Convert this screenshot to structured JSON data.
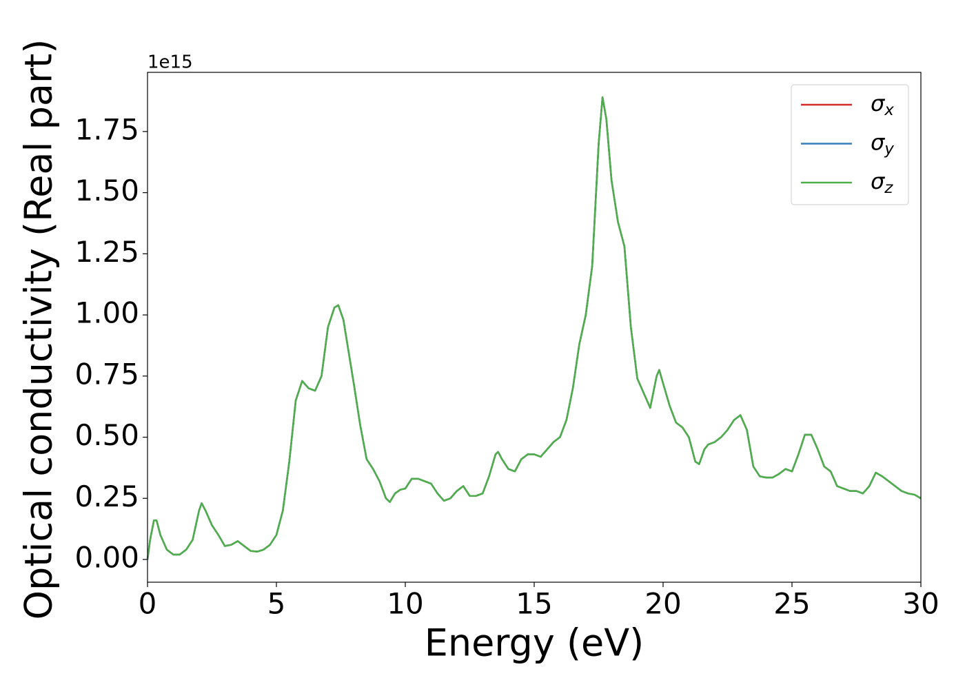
{
  "chart_data": {
    "type": "line",
    "xlabel": "Energy (eV)",
    "ylabel": "Optical conductivity (Real part)",
    "y_offset_label": "1e15",
    "x": [
      0,
      0.1,
      0.25,
      0.35,
      0.5,
      0.75,
      1.0,
      1.25,
      1.5,
      1.75,
      2.0,
      2.1,
      2.25,
      2.5,
      2.75,
      3.0,
      3.25,
      3.5,
      3.75,
      4.0,
      4.25,
      4.5,
      4.75,
      5.0,
      5.25,
      5.5,
      5.75,
      6.0,
      6.25,
      6.5,
      6.75,
      7.0,
      7.25,
      7.4,
      7.6,
      7.8,
      8.0,
      8.25,
      8.5,
      8.75,
      9.0,
      9.25,
      9.4,
      9.6,
      9.8,
      10.0,
      10.25,
      10.5,
      10.75,
      11.0,
      11.25,
      11.5,
      11.75,
      12.0,
      12.25,
      12.5,
      12.75,
      13.0,
      13.25,
      13.5,
      13.6,
      13.75,
      14.0,
      14.25,
      14.5,
      14.75,
      15.0,
      15.25,
      15.5,
      15.75,
      16.0,
      16.25,
      16.5,
      16.75,
      17.0,
      17.25,
      17.5,
      17.65,
      17.8,
      18.0,
      18.25,
      18.5,
      18.75,
      19.0,
      19.25,
      19.5,
      19.75,
      19.85,
      20.0,
      20.25,
      20.5,
      20.75,
      21.0,
      21.25,
      21.4,
      21.6,
      21.75,
      22.0,
      22.25,
      22.5,
      22.75,
      23.0,
      23.25,
      23.5,
      23.75,
      24.0,
      24.25,
      24.5,
      24.75,
      25.0,
      25.25,
      25.5,
      25.75,
      26.0,
      26.25,
      26.5,
      26.75,
      27.0,
      27.25,
      27.5,
      27.75,
      28.0,
      28.25,
      28.5,
      28.75,
      29.0,
      29.25,
      29.5,
      29.75,
      30.0
    ],
    "series": [
      {
        "name": "σx",
        "color": "#d62728",
        "values": [
          0,
          0.08,
          0.16,
          0.16,
          0.1,
          0.04,
          0.02,
          0.02,
          0.04,
          0.08,
          0.2,
          0.23,
          0.2,
          0.14,
          0.1,
          0.055,
          0.06,
          0.075,
          0.055,
          0.035,
          0.032,
          0.04,
          0.06,
          0.1,
          0.2,
          0.4,
          0.65,
          0.73,
          0.7,
          0.69,
          0.75,
          0.95,
          1.03,
          1.04,
          0.98,
          0.85,
          0.72,
          0.55,
          0.41,
          0.37,
          0.32,
          0.25,
          0.235,
          0.27,
          0.285,
          0.29,
          0.33,
          0.33,
          0.32,
          0.31,
          0.27,
          0.24,
          0.25,
          0.28,
          0.3,
          0.26,
          0.26,
          0.27,
          0.34,
          0.43,
          0.44,
          0.41,
          0.37,
          0.36,
          0.41,
          0.43,
          0.43,
          0.42,
          0.45,
          0.48,
          0.5,
          0.57,
          0.7,
          0.88,
          1.0,
          1.2,
          1.7,
          1.89,
          1.8,
          1.55,
          1.38,
          1.28,
          0.95,
          0.74,
          0.68,
          0.62,
          0.75,
          0.775,
          0.72,
          0.63,
          0.56,
          0.54,
          0.5,
          0.4,
          0.39,
          0.45,
          0.47,
          0.48,
          0.5,
          0.53,
          0.57,
          0.59,
          0.53,
          0.38,
          0.34,
          0.335,
          0.335,
          0.35,
          0.37,
          0.36,
          0.43,
          0.51,
          0.51,
          0.45,
          0.38,
          0.36,
          0.3,
          0.29,
          0.28,
          0.28,
          0.27,
          0.3,
          0.355,
          0.34,
          0.32,
          0.3,
          0.28,
          0.27,
          0.265,
          0.25
        ]
      },
      {
        "name": "σy",
        "color": "#377eb8",
        "values": [
          0,
          0.08,
          0.16,
          0.16,
          0.1,
          0.04,
          0.02,
          0.02,
          0.04,
          0.08,
          0.2,
          0.23,
          0.2,
          0.14,
          0.1,
          0.055,
          0.06,
          0.075,
          0.055,
          0.035,
          0.032,
          0.04,
          0.06,
          0.1,
          0.2,
          0.4,
          0.65,
          0.73,
          0.7,
          0.69,
          0.75,
          0.95,
          1.03,
          1.04,
          0.98,
          0.85,
          0.72,
          0.55,
          0.41,
          0.37,
          0.32,
          0.25,
          0.235,
          0.27,
          0.285,
          0.29,
          0.33,
          0.33,
          0.32,
          0.31,
          0.27,
          0.24,
          0.25,
          0.28,
          0.3,
          0.26,
          0.26,
          0.27,
          0.34,
          0.43,
          0.44,
          0.41,
          0.37,
          0.36,
          0.41,
          0.43,
          0.43,
          0.42,
          0.45,
          0.48,
          0.5,
          0.57,
          0.7,
          0.88,
          1.0,
          1.2,
          1.7,
          1.89,
          1.8,
          1.55,
          1.38,
          1.28,
          0.95,
          0.74,
          0.68,
          0.62,
          0.75,
          0.775,
          0.72,
          0.63,
          0.56,
          0.54,
          0.5,
          0.4,
          0.39,
          0.45,
          0.47,
          0.48,
          0.5,
          0.53,
          0.57,
          0.59,
          0.53,
          0.38,
          0.34,
          0.335,
          0.335,
          0.35,
          0.37,
          0.36,
          0.43,
          0.51,
          0.51,
          0.45,
          0.38,
          0.36,
          0.3,
          0.29,
          0.28,
          0.28,
          0.27,
          0.3,
          0.355,
          0.34,
          0.32,
          0.3,
          0.28,
          0.27,
          0.265,
          0.25
        ]
      },
      {
        "name": "σz",
        "color": "#4daf4a",
        "values": [
          0,
          0.08,
          0.16,
          0.16,
          0.1,
          0.04,
          0.02,
          0.02,
          0.04,
          0.08,
          0.2,
          0.23,
          0.2,
          0.14,
          0.1,
          0.055,
          0.06,
          0.075,
          0.055,
          0.035,
          0.032,
          0.04,
          0.06,
          0.1,
          0.2,
          0.4,
          0.65,
          0.73,
          0.7,
          0.69,
          0.75,
          0.95,
          1.03,
          1.04,
          0.98,
          0.85,
          0.72,
          0.55,
          0.41,
          0.37,
          0.32,
          0.25,
          0.235,
          0.27,
          0.285,
          0.29,
          0.33,
          0.33,
          0.32,
          0.31,
          0.27,
          0.24,
          0.25,
          0.28,
          0.3,
          0.26,
          0.26,
          0.27,
          0.34,
          0.43,
          0.44,
          0.41,
          0.37,
          0.36,
          0.41,
          0.43,
          0.43,
          0.42,
          0.45,
          0.48,
          0.5,
          0.57,
          0.7,
          0.88,
          1.0,
          1.2,
          1.7,
          1.89,
          1.8,
          1.55,
          1.38,
          1.28,
          0.95,
          0.74,
          0.68,
          0.62,
          0.75,
          0.775,
          0.72,
          0.63,
          0.56,
          0.54,
          0.5,
          0.4,
          0.39,
          0.45,
          0.47,
          0.48,
          0.5,
          0.53,
          0.57,
          0.59,
          0.53,
          0.38,
          0.34,
          0.335,
          0.335,
          0.35,
          0.37,
          0.36,
          0.43,
          0.51,
          0.51,
          0.45,
          0.38,
          0.36,
          0.3,
          0.29,
          0.28,
          0.28,
          0.27,
          0.3,
          0.355,
          0.34,
          0.32,
          0.3,
          0.28,
          0.27,
          0.265,
          0.25
        ]
      }
    ],
    "xlim": [
      0,
      30
    ],
    "xticks": [
      0,
      5,
      10,
      15,
      20,
      25,
      30
    ],
    "ylim": [
      -0.093,
      1.992
    ],
    "yticks": [
      {
        "value": 0,
        "label": "0.00"
      },
      0.25,
      {
        "value": 0.5,
        "label": "0.50"
      },
      0.75,
      {
        "value": 1,
        "label": "1.00"
      },
      1.25,
      {
        "value": 1.5,
        "label": "1.50"
      },
      1.75
    ],
    "legend": "upper right",
    "grid": false
  }
}
